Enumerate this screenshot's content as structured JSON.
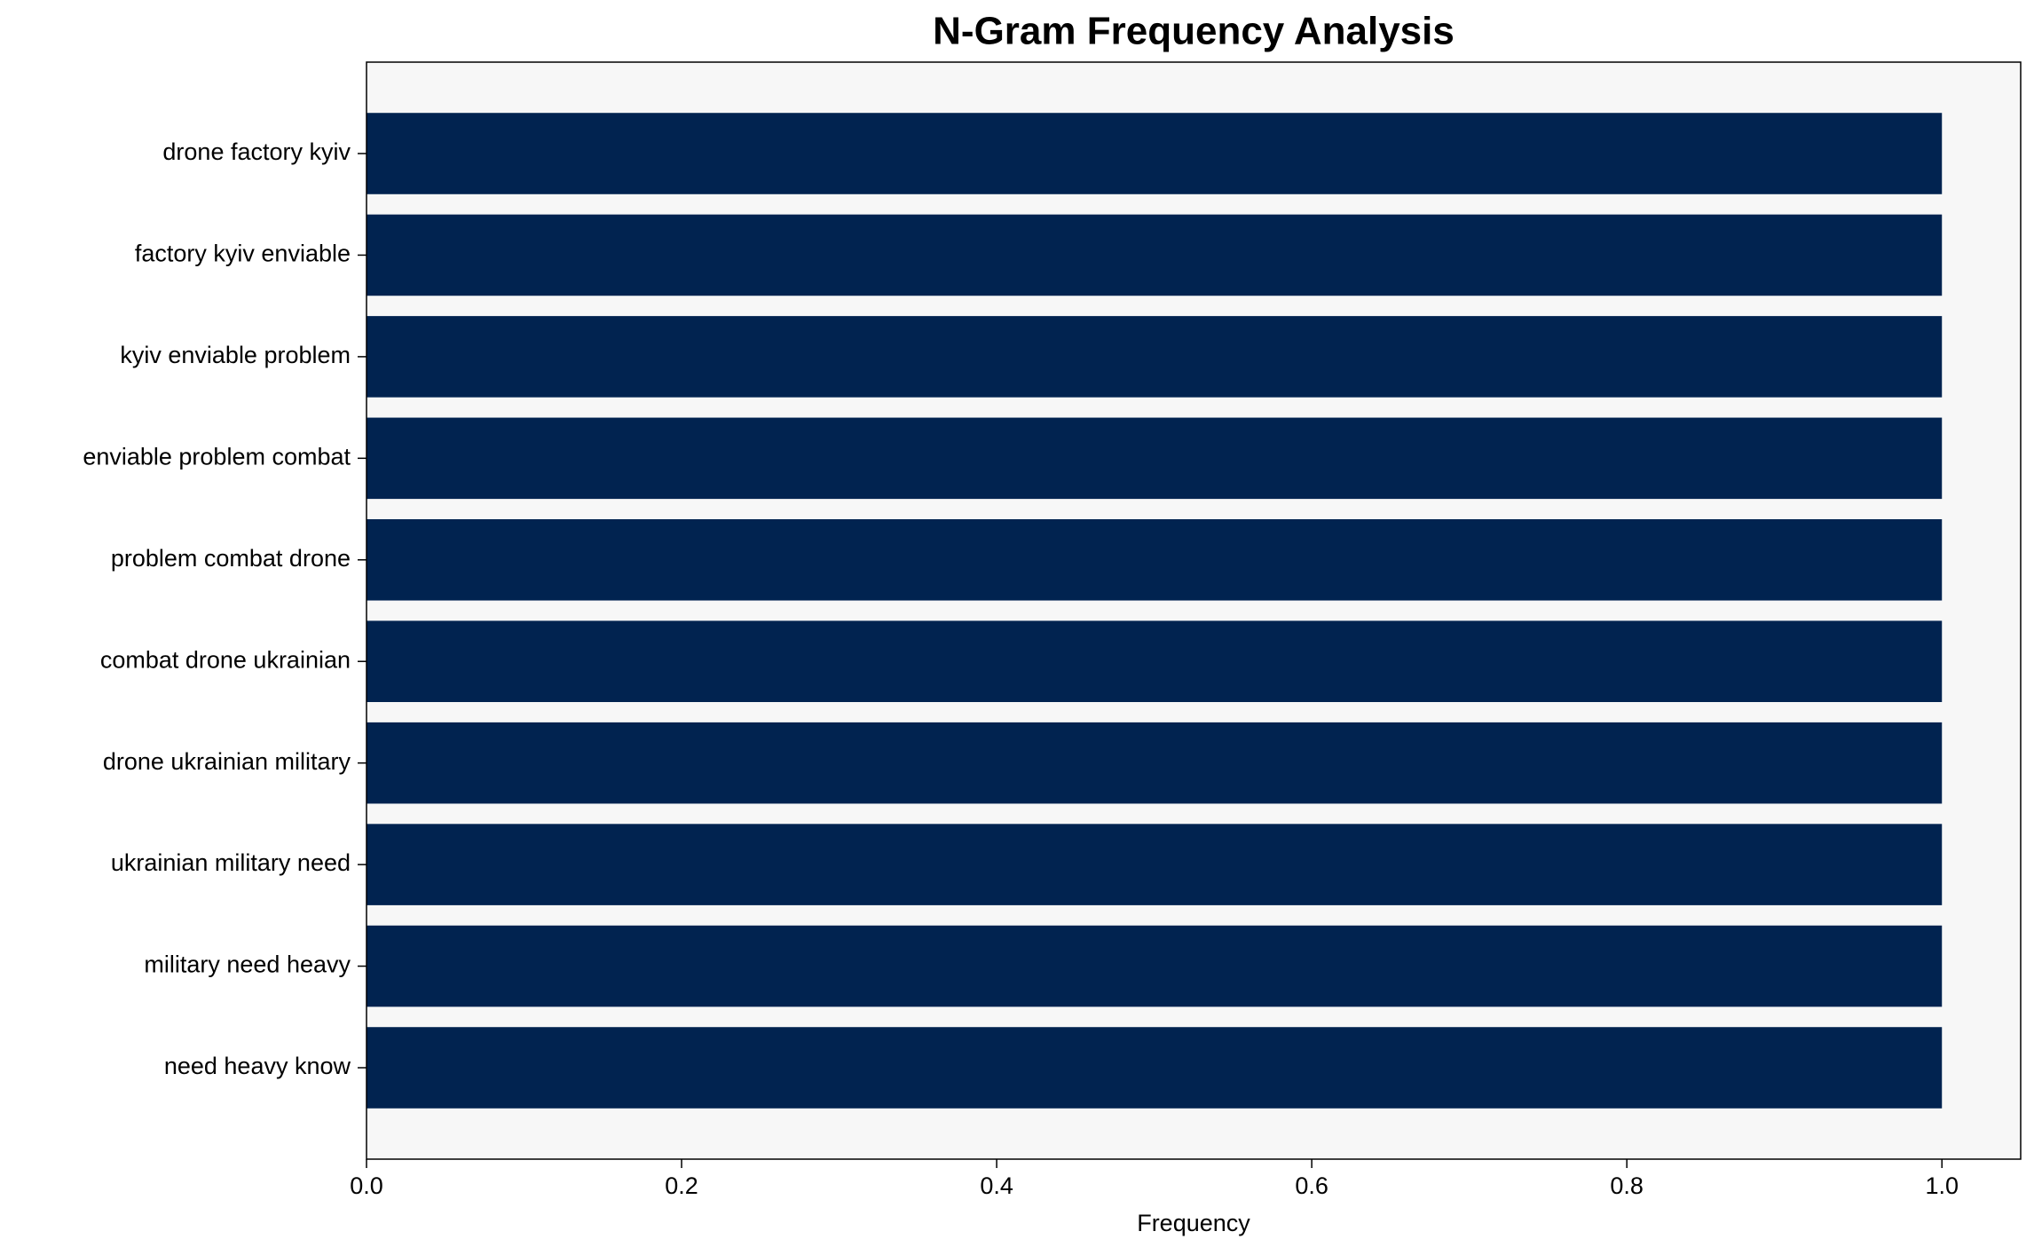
{
  "chart_data": {
    "type": "barh",
    "title": "N-Gram Frequency Analysis",
    "x_label": "Frequency",
    "categories": [
      "drone factory kyiv",
      "factory kyiv enviable",
      "kyiv enviable problem",
      "enviable problem combat",
      "problem combat drone",
      "combat drone ukrainian",
      "drone ukrainian military",
      "ukrainian military need",
      "military need heavy",
      "need heavy know"
    ],
    "values": [
      1,
      1,
      1,
      1,
      1,
      1,
      1,
      1,
      1,
      1
    ],
    "color": "#012350",
    "background": "#f7f7f7",
    "xlim": [
      0,
      1.05
    ],
    "xticks": [
      {
        "value": 0,
        "label": "0.0"
      },
      {
        "value": 0.2,
        "label": "0.2"
      },
      {
        "value": 0.4,
        "label": "0.4"
      },
      {
        "value": 0.6,
        "label": "0.6"
      },
      {
        "value": 0.8,
        "label": "0.8"
      },
      {
        "value": 1,
        "label": "1.0"
      }
    ]
  }
}
